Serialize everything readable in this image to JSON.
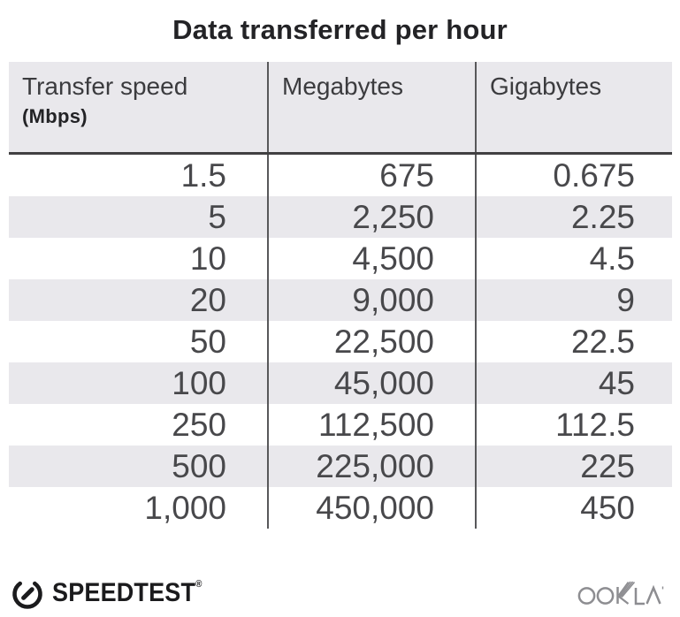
{
  "title": "Data transferred per hour",
  "table": {
    "columns": [
      {
        "label": "Transfer speed",
        "sublabel": "(Mbps)"
      },
      {
        "label": "Megabytes"
      },
      {
        "label": "Gigabytes"
      }
    ],
    "rows": [
      [
        "1.5",
        "675",
        "0.675"
      ],
      [
        "5",
        "2,250",
        "2.25"
      ],
      [
        "10",
        "4,500",
        "4.5"
      ],
      [
        "20",
        "9,000",
        "9"
      ],
      [
        "50",
        "22,500",
        "22.5"
      ],
      [
        "100",
        "45,000",
        "45"
      ],
      [
        "250",
        "112,500",
        "112.5"
      ],
      [
        "500",
        "225,000",
        "225"
      ],
      [
        "1,000",
        "450,000",
        "450"
      ]
    ]
  },
  "chart_data": {
    "type": "table",
    "title": "Data transferred per hour",
    "columns": [
      "Transfer speed (Mbps)",
      "Megabytes",
      "Gigabytes"
    ],
    "rows": [
      [
        1.5,
        675,
        0.675
      ],
      [
        5,
        2250,
        2.25
      ],
      [
        10,
        4500,
        4.5
      ],
      [
        20,
        9000,
        9
      ],
      [
        50,
        22500,
        22.5
      ],
      [
        100,
        45000,
        45
      ],
      [
        250,
        112500,
        112.5
      ],
      [
        500,
        225000,
        225
      ],
      [
        1000,
        450000,
        450
      ]
    ],
    "layout": {
      "striped_rows": true,
      "stripe_on": "even",
      "column_dividers": true,
      "header_underline": true
    }
  },
  "footer": {
    "speedtest_label": "SPEEDTEST",
    "speedtest_trademark": "®",
    "ookla_label": "OOKLA"
  },
  "colors": {
    "title_text": "#232326",
    "header_bg": "#e9e8ec",
    "row_alt_bg": "#e9e8ec",
    "divider": "#58585a",
    "header_underline": "#414042",
    "body_text": "#48484b",
    "speedtest_black": "#1b1b1d",
    "ookla_gray": "#8d8d91"
  }
}
